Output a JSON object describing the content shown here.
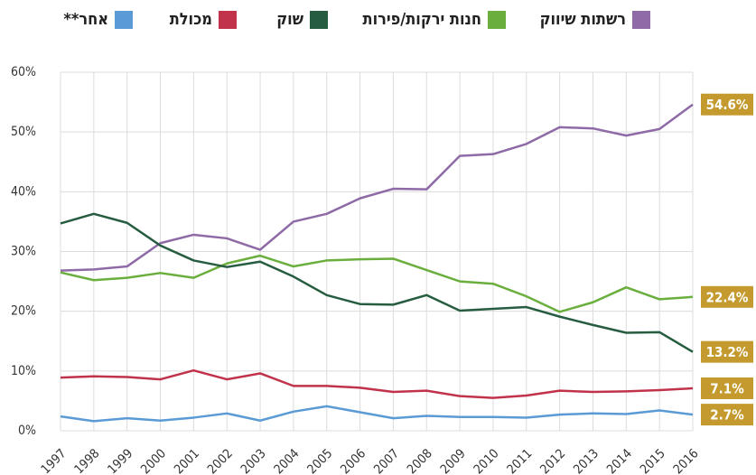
{
  "chart_data": {
    "type": "line",
    "categories": [
      "1997",
      "1998",
      "1999",
      "2000",
      "2001",
      "2002",
      "2003",
      "2004",
      "2005",
      "2006",
      "2007",
      "2008",
      "2009",
      "2010",
      "2011",
      "2012",
      "2013",
      "2014",
      "2015",
      "2016"
    ],
    "series": [
      {
        "name": "רשתות שיווק",
        "color": "#8e6aa6",
        "values": [
          26.8,
          27.0,
          27.5,
          31.4,
          32.8,
          32.2,
          30.3,
          35.0,
          36.3,
          38.9,
          40.5,
          40.4,
          46.0,
          46.3,
          48.0,
          50.8,
          50.6,
          49.4,
          50.5,
          54.6
        ],
        "value_labels": [
          null,
          null,
          null,
          null,
          null,
          null,
          null,
          null,
          null,
          null,
          null,
          null,
          null,
          null,
          null,
          null,
          null,
          null,
          null,
          "54.6%"
        ]
      },
      {
        "name": "חנות ירקות/פירות",
        "color": "#6aaf3d",
        "values": [
          26.5,
          25.2,
          25.6,
          26.4,
          25.6,
          28.0,
          29.3,
          27.5,
          28.5,
          28.7,
          28.8,
          26.9,
          25.0,
          24.6,
          22.5,
          19.9,
          21.5,
          24.0,
          22.0,
          22.4
        ],
        "value_labels": [
          null,
          null,
          null,
          null,
          null,
          null,
          null,
          null,
          null,
          null,
          null,
          null,
          null,
          null,
          null,
          null,
          null,
          null,
          null,
          "22.4%"
        ]
      },
      {
        "name": "שוק",
        "color": "#265c3f",
        "values": [
          34.7,
          36.3,
          34.8,
          31.0,
          28.5,
          27.4,
          28.3,
          25.8,
          22.7,
          21.2,
          21.1,
          22.7,
          20.1,
          20.4,
          20.7,
          19.1,
          17.7,
          16.4,
          16.5,
          13.2
        ],
        "value_labels": [
          null,
          null,
          null,
          null,
          null,
          null,
          null,
          null,
          null,
          null,
          null,
          null,
          null,
          null,
          null,
          null,
          null,
          null,
          null,
          "13.2%"
        ]
      },
      {
        "name": "מכולת",
        "color": "#c1334b",
        "values": [
          8.9,
          9.1,
          9.0,
          8.6,
          10.1,
          8.6,
          9.6,
          7.5,
          7.5,
          7.2,
          6.5,
          6.7,
          5.8,
          5.5,
          5.9,
          6.7,
          6.5,
          6.6,
          6.8,
          7.1
        ],
        "value_labels": [
          null,
          null,
          null,
          null,
          null,
          null,
          null,
          null,
          null,
          null,
          null,
          null,
          null,
          null,
          null,
          null,
          null,
          null,
          null,
          "7.1%"
        ]
      },
      {
        "name": "אחר**",
        "color": "#5b9bd5",
        "values": [
          2.4,
          1.6,
          2.1,
          1.7,
          2.2,
          2.9,
          1.7,
          3.2,
          4.1,
          3.1,
          2.1,
          2.5,
          2.3,
          2.3,
          2.2,
          2.7,
          2.9,
          2.8,
          3.4,
          2.7
        ],
        "value_labels": [
          null,
          null,
          null,
          null,
          null,
          null,
          null,
          null,
          null,
          null,
          null,
          null,
          null,
          null,
          null,
          null,
          null,
          null,
          null,
          "2.7%"
        ]
      }
    ],
    "ylim": [
      0,
      60
    ],
    "yticks": [
      {
        "value": 0,
        "label": "0%"
      },
      {
        "value": 10,
        "label": "10%"
      },
      {
        "value": 20,
        "label": "20%"
      },
      {
        "value": 30,
        "label": "30%"
      },
      {
        "value": 40,
        "label": "40%"
      },
      {
        "value": 50,
        "label": "50%"
      },
      {
        "value": 60,
        "label": "60%"
      }
    ],
    "grid": true,
    "label_color": "#c49a2e"
  }
}
